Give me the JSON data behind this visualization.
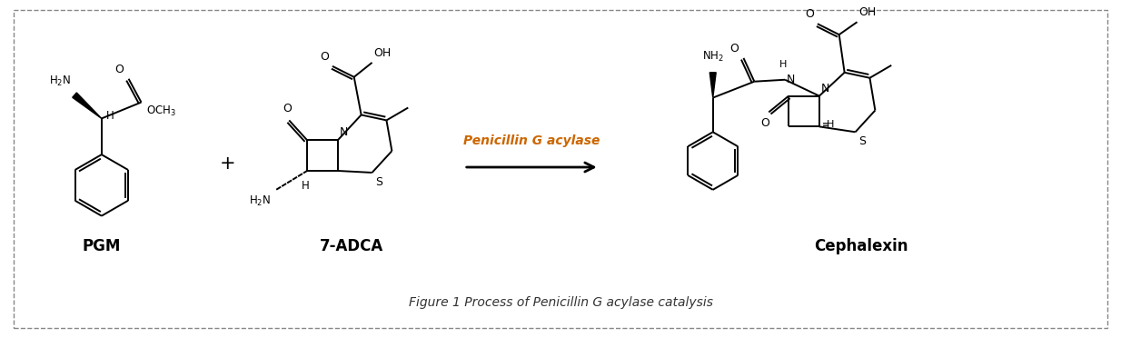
{
  "title": "Figure 1 Process of Penicillin G acylase catalysis",
  "arrow_label": "Penicillin G acylase",
  "label_pgm": "PGM",
  "label_7adca": "7-ADCA",
  "label_cephalexin": "Cephalexin",
  "bg_color": "#ffffff",
  "border_color": "#888888",
  "line_color": "#000000",
  "arrow_color": "#000000",
  "arrow_label_color": "#cc6600",
  "figsize": [
    12.34,
    3.72
  ],
  "dpi": 100
}
